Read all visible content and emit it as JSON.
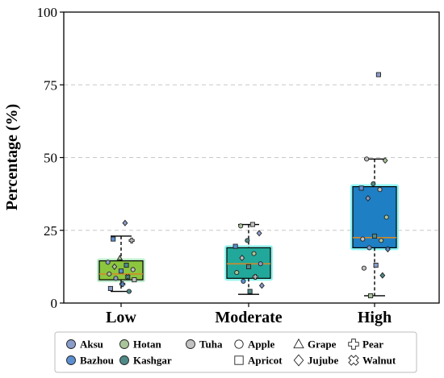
{
  "chart_data": {
    "type": "box",
    "title": "",
    "xlabel": "",
    "ylabel": "Percentage (%)",
    "ylim": [
      0,
      100
    ],
    "yticks": [
      0,
      25,
      50,
      75,
      100
    ],
    "grid": "horizontal-dashed",
    "legend_position": "bottom",
    "categories": [
      "Low",
      "Moderate",
      "High"
    ],
    "boxes": [
      {
        "category": "Low",
        "color": "#8cc63f",
        "glow": "#a8e6b8",
        "whisker_low": 4,
        "q1": 8,
        "median": 10,
        "q3": 14.5,
        "whisker_high": 23
      },
      {
        "category": "Moderate",
        "color": "#22a89a",
        "glow": "#6ff0e8",
        "whisker_low": 3,
        "q1": 8.5,
        "median": 13.5,
        "q3": 19,
        "whisker_high": 27
      },
      {
        "category": "High",
        "color": "#1e7fc4",
        "glow": "#66f2f0",
        "whisker_low": 2.5,
        "q1": 19,
        "median": 22.5,
        "q3": 40,
        "whisker_high": 49.5
      }
    ],
    "points": [
      {
        "category": "Low",
        "y": 27.5,
        "region": "Aksu",
        "fruit": "Jujube"
      },
      {
        "category": "Low",
        "y": 22,
        "region": "Bazhou",
        "fruit": "Apricot"
      },
      {
        "category": "Low",
        "y": 21.5,
        "region": "Tuha",
        "fruit": "Pear"
      },
      {
        "category": "Low",
        "y": 15.5,
        "region": "Hotan",
        "fruit": "Grape"
      },
      {
        "category": "Low",
        "y": 14,
        "region": "Aksu",
        "fruit": "Apple"
      },
      {
        "category": "Low",
        "y": 13,
        "region": "Kashgar",
        "fruit": "Apricot"
      },
      {
        "category": "Low",
        "y": 12.5,
        "region": "Hotan",
        "fruit": "Jujube"
      },
      {
        "category": "Low",
        "y": 11.5,
        "region": "Tuha",
        "fruit": "Apple"
      },
      {
        "category": "Low",
        "y": 11,
        "region": "Bazhou",
        "fruit": "Apricot"
      },
      {
        "category": "Low",
        "y": 10,
        "region": "Hotan",
        "fruit": "Apple"
      },
      {
        "category": "Low",
        "y": 9,
        "region": "Kashgar",
        "fruit": "Walnut"
      },
      {
        "category": "Low",
        "y": 8.5,
        "region": "Aksu",
        "fruit": "Apple"
      },
      {
        "category": "Low",
        "y": 8,
        "region": "Tuha",
        "fruit": "Apricot"
      },
      {
        "category": "Low",
        "y": 6.5,
        "region": "Bazhou",
        "fruit": "Pear"
      },
      {
        "category": "Low",
        "y": 5,
        "region": "Aksu",
        "fruit": "Apricot"
      },
      {
        "category": "Low",
        "y": 4,
        "region": "Kashgar",
        "fruit": "Apple"
      },
      {
        "category": "Moderate",
        "y": 27,
        "region": "Tuha",
        "fruit": "Apricot"
      },
      {
        "category": "Moderate",
        "y": 26.5,
        "region": "Hotan",
        "fruit": "Apple"
      },
      {
        "category": "Moderate",
        "y": 24,
        "region": "Aksu",
        "fruit": "Jujube"
      },
      {
        "category": "Moderate",
        "y": 21.5,
        "region": "Kashgar",
        "fruit": "Apple"
      },
      {
        "category": "Moderate",
        "y": 19.5,
        "region": "Bazhou",
        "fruit": "Apricot"
      },
      {
        "category": "Moderate",
        "y": 17,
        "region": "Hotan",
        "fruit": "Apple"
      },
      {
        "category": "Moderate",
        "y": 15.5,
        "region": "Tuha",
        "fruit": "Jujube"
      },
      {
        "category": "Moderate",
        "y": 13.5,
        "region": "Aksu",
        "fruit": "Apple"
      },
      {
        "category": "Moderate",
        "y": 12.5,
        "region": "Kashgar",
        "fruit": "Apricot"
      },
      {
        "category": "Moderate",
        "y": 10.5,
        "region": "Hotan",
        "fruit": "Apple"
      },
      {
        "category": "Moderate",
        "y": 9,
        "region": "Tuha",
        "fruit": "Pear"
      },
      {
        "category": "Moderate",
        "y": 7.5,
        "region": "Bazhou",
        "fruit": "Apple"
      },
      {
        "category": "Moderate",
        "y": 6,
        "region": "Aksu",
        "fruit": "Jujube"
      },
      {
        "category": "Moderate",
        "y": 4,
        "region": "Kashgar",
        "fruit": "Apricot"
      },
      {
        "category": "High",
        "y": 78.5,
        "region": "Aksu",
        "fruit": "Apricot"
      },
      {
        "category": "High",
        "y": 49.5,
        "region": "Tuha",
        "fruit": "Apple"
      },
      {
        "category": "High",
        "y": 49,
        "region": "Hotan",
        "fruit": "Jujube"
      },
      {
        "category": "High",
        "y": 41,
        "region": "Kashgar",
        "fruit": "Apple"
      },
      {
        "category": "High",
        "y": 39.5,
        "region": "Bazhou",
        "fruit": "Apricot"
      },
      {
        "category": "High",
        "y": 39,
        "region": "Tuha",
        "fruit": "Apple"
      },
      {
        "category": "High",
        "y": 36,
        "region": "Aksu",
        "fruit": "Jujube"
      },
      {
        "category": "High",
        "y": 29.5,
        "region": "Hotan",
        "fruit": "Apple"
      },
      {
        "category": "High",
        "y": 23,
        "region": "Kashgar",
        "fruit": "Apricot"
      },
      {
        "category": "High",
        "y": 22,
        "region": "Tuha",
        "fruit": "Apple"
      },
      {
        "category": "High",
        "y": 21.5,
        "region": "Hotan",
        "fruit": "Apple"
      },
      {
        "category": "High",
        "y": 19,
        "region": "Aksu",
        "fruit": "Apple"
      },
      {
        "category": "High",
        "y": 18.5,
        "region": "Bazhou",
        "fruit": "Jujube"
      },
      {
        "category": "High",
        "y": 13,
        "region": "Aksu",
        "fruit": "Apricot"
      },
      {
        "category": "High",
        "y": 12,
        "region": "Tuha",
        "fruit": "Apple"
      },
      {
        "category": "High",
        "y": 9.5,
        "region": "Kashgar",
        "fruit": "Jujube"
      },
      {
        "category": "High",
        "y": 2.5,
        "region": "Hotan",
        "fruit": "Apricot"
      }
    ],
    "legend": {
      "regions": [
        {
          "name": "Aksu",
          "color": "#8a9cc9"
        },
        {
          "name": "Bazhou",
          "color": "#5b8fd0"
        },
        {
          "name": "Hotan",
          "color": "#a9c49a"
        },
        {
          "name": "Kashgar",
          "color": "#4f8a88"
        },
        {
          "name": "Tuha",
          "color": "#c2c2c2"
        }
      ],
      "fruits": [
        {
          "name": "Apple",
          "shape": "circle"
        },
        {
          "name": "Apricot",
          "shape": "square"
        },
        {
          "name": "Grape",
          "shape": "triangle"
        },
        {
          "name": "Jujube",
          "shape": "diamond"
        },
        {
          "name": "Pear",
          "shape": "plus"
        },
        {
          "name": "Walnut",
          "shape": "x"
        }
      ]
    }
  }
}
